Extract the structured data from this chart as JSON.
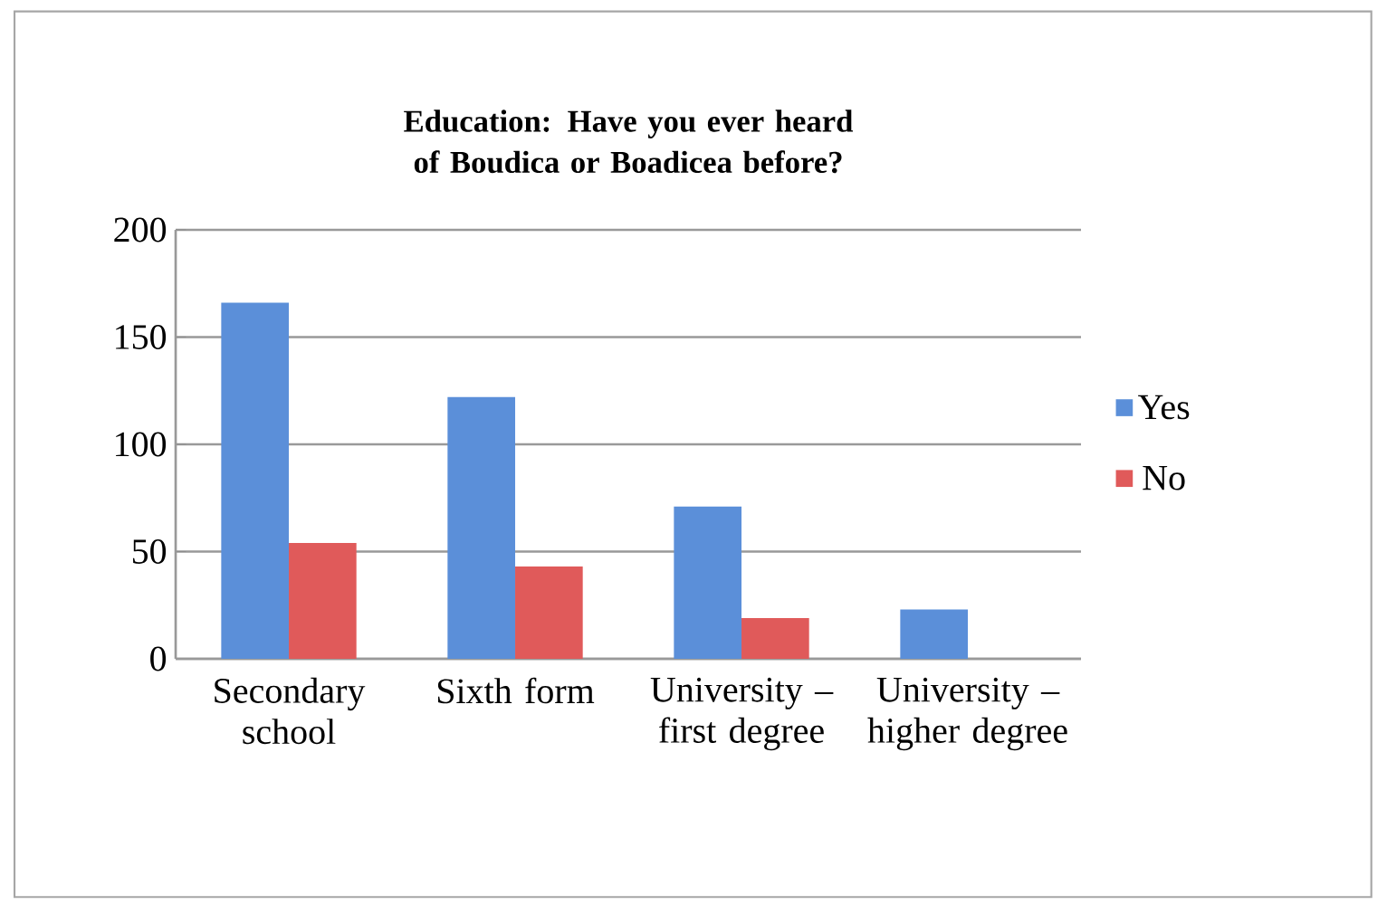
{
  "chart_data": {
    "type": "bar",
    "title": "Education: Have you ever heard of Boudica or Boadicea before?",
    "categories": [
      "Secondary school",
      "Sixth form",
      "University – first degree",
      "University – higher degree"
    ],
    "series": [
      {
        "name": "Yes",
        "color": "#5b8fd9",
        "values": [
          166,
          122,
          71,
          23
        ]
      },
      {
        "name": "No",
        "color": "#e05a5a",
        "values": [
          54,
          43,
          19,
          null
        ]
      }
    ],
    "ylim": [
      0,
      200
    ],
    "yticks": [
      0,
      50,
      100,
      150,
      200
    ],
    "grid": "y",
    "legend": "right"
  }
}
